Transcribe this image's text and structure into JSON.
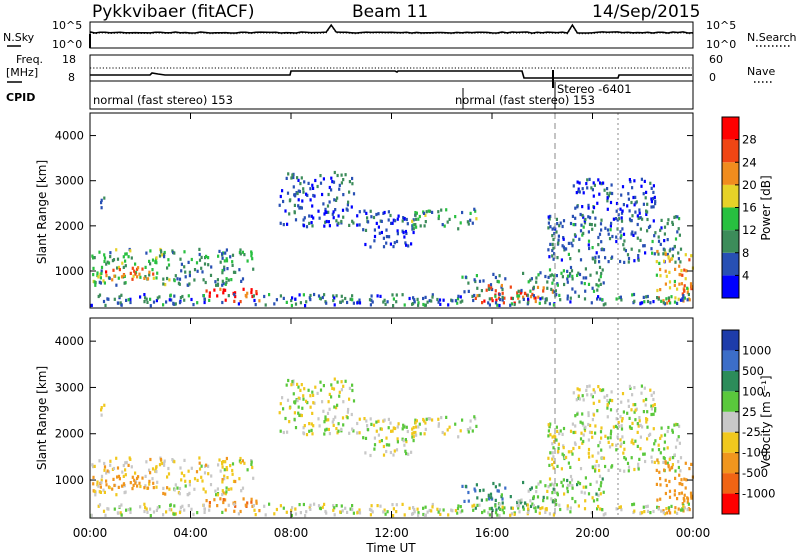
{
  "header": {
    "station": "Pykkvibaer (fitACF)",
    "beam": "Beam 11",
    "date": "14/Sep/2015"
  },
  "noise_panel": {
    "left_label": "N.Sky",
    "right_label": "N.Search",
    "left_ticks": [
      "10^5",
      "10^0"
    ],
    "right_ticks": [
      "10^5",
      "10^0"
    ]
  },
  "freq_panel": {
    "left_label_1": "Freq.",
    "left_label_2": "[MHz]",
    "right_label": "Nave",
    "left_ticks": [
      "18",
      "8"
    ],
    "right_ticks": [
      "60",
      "0"
    ]
  },
  "cpid_panel": {
    "label": "CPID",
    "modes": [
      {
        "name": "normal (fast stereo) 153",
        "start_hour": 0
      },
      {
        "name": "normal (fast stereo) 153",
        "start_hour": 15.3
      },
      {
        "name": "Stereo -6401",
        "start_hour": 18.5
      }
    ]
  },
  "chart_data": [
    {
      "type": "heatmap",
      "title": "",
      "xlabel": "",
      "ylabel": "Slant Range [km]",
      "xlim": [
        0,
        24
      ],
      "ylim": [
        180,
        4500
      ],
      "yticks": [
        1000,
        2000,
        3000,
        4000
      ],
      "colorbar": {
        "label": "Power [dB]",
        "ticks": [
          "4",
          "8",
          "12",
          "16",
          "20",
          "24",
          "28"
        ],
        "colors": [
          "#0000ff",
          "#2850b4",
          "#3c8c5a",
          "#28c040",
          "#e6d228",
          "#f08c1e",
          "#f04614",
          "#ff0000"
        ]
      }
    },
    {
      "type": "heatmap",
      "title": "",
      "xlabel": "Time UT",
      "ylabel": "Slant Range [km]",
      "xlim": [
        0,
        24
      ],
      "ylim": [
        180,
        4500
      ],
      "yticks": [
        1000,
        2000,
        3000,
        4000
      ],
      "xticks": [
        "00:00",
        "04:00",
        "08:00",
        "12:00",
        "16:00",
        "20:00",
        "00:00"
      ],
      "colorbar": {
        "label": "Velocity [m s⁻¹]",
        "ticks": [
          "1000",
          "500",
          "100",
          "25",
          "-25",
          "-100",
          "-500",
          "-1000"
        ],
        "colors": [
          "#1e3caa",
          "#3c6ec8",
          "#2c8c5a",
          "#5ac83c",
          "#c8c8c8",
          "#f0c81e",
          "#f0961e",
          "#f06414",
          "#ff0000"
        ]
      }
    }
  ],
  "echo_regions": [
    {
      "t0": 0.0,
      "t1": 3.2,
      "r0": 650,
      "r1": 1450,
      "p": 14,
      "v": -60
    },
    {
      "t0": 0.5,
      "t1": 2.6,
      "r0": 700,
      "r1": 1050,
      "p": 26,
      "v": -200
    },
    {
      "t0": 0.3,
      "t1": 0.7,
      "r0": 2350,
      "r1": 2650,
      "p": 10,
      "v": 0
    },
    {
      "t0": 3.2,
      "t1": 6.5,
      "r0": 650,
      "r1": 1450,
      "p": 12,
      "v": -30
    },
    {
      "t0": 4.5,
      "t1": 6.8,
      "r0": 280,
      "r1": 580,
      "p": 28,
      "v": -450
    },
    {
      "t0": 7.5,
      "t1": 10.5,
      "r0": 1950,
      "r1": 3150,
      "p": 8,
      "v": 0
    },
    {
      "t0": 10.5,
      "t1": 13.0,
      "r0": 1500,
      "r1": 2300,
      "p": 6,
      "v": 0
    },
    {
      "t0": 12.7,
      "t1": 15.4,
      "r0": 1900,
      "r1": 2350,
      "p": 14,
      "v": 0
    },
    {
      "t0": 14.7,
      "t1": 16.5,
      "r0": 500,
      "r1": 900,
      "p": 10,
      "v": 500
    },
    {
      "t0": 15.3,
      "t1": 18.4,
      "r0": 250,
      "r1": 650,
      "p": 28,
      "v": 100
    },
    {
      "t0": 17.0,
      "t1": 20.5,
      "r0": 500,
      "r1": 1050,
      "p": 12,
      "v": 40
    },
    {
      "t0": 18.2,
      "t1": 23.5,
      "r0": 1150,
      "r1": 2200,
      "p": 10,
      "v": 0
    },
    {
      "t0": 19.2,
      "t1": 22.5,
      "r0": 2100,
      "r1": 3000,
      "p": 7,
      "v": 0
    },
    {
      "t0": 22.5,
      "t1": 24.0,
      "r0": 250,
      "r1": 1400,
      "p": 22,
      "v": -400
    }
  ]
}
